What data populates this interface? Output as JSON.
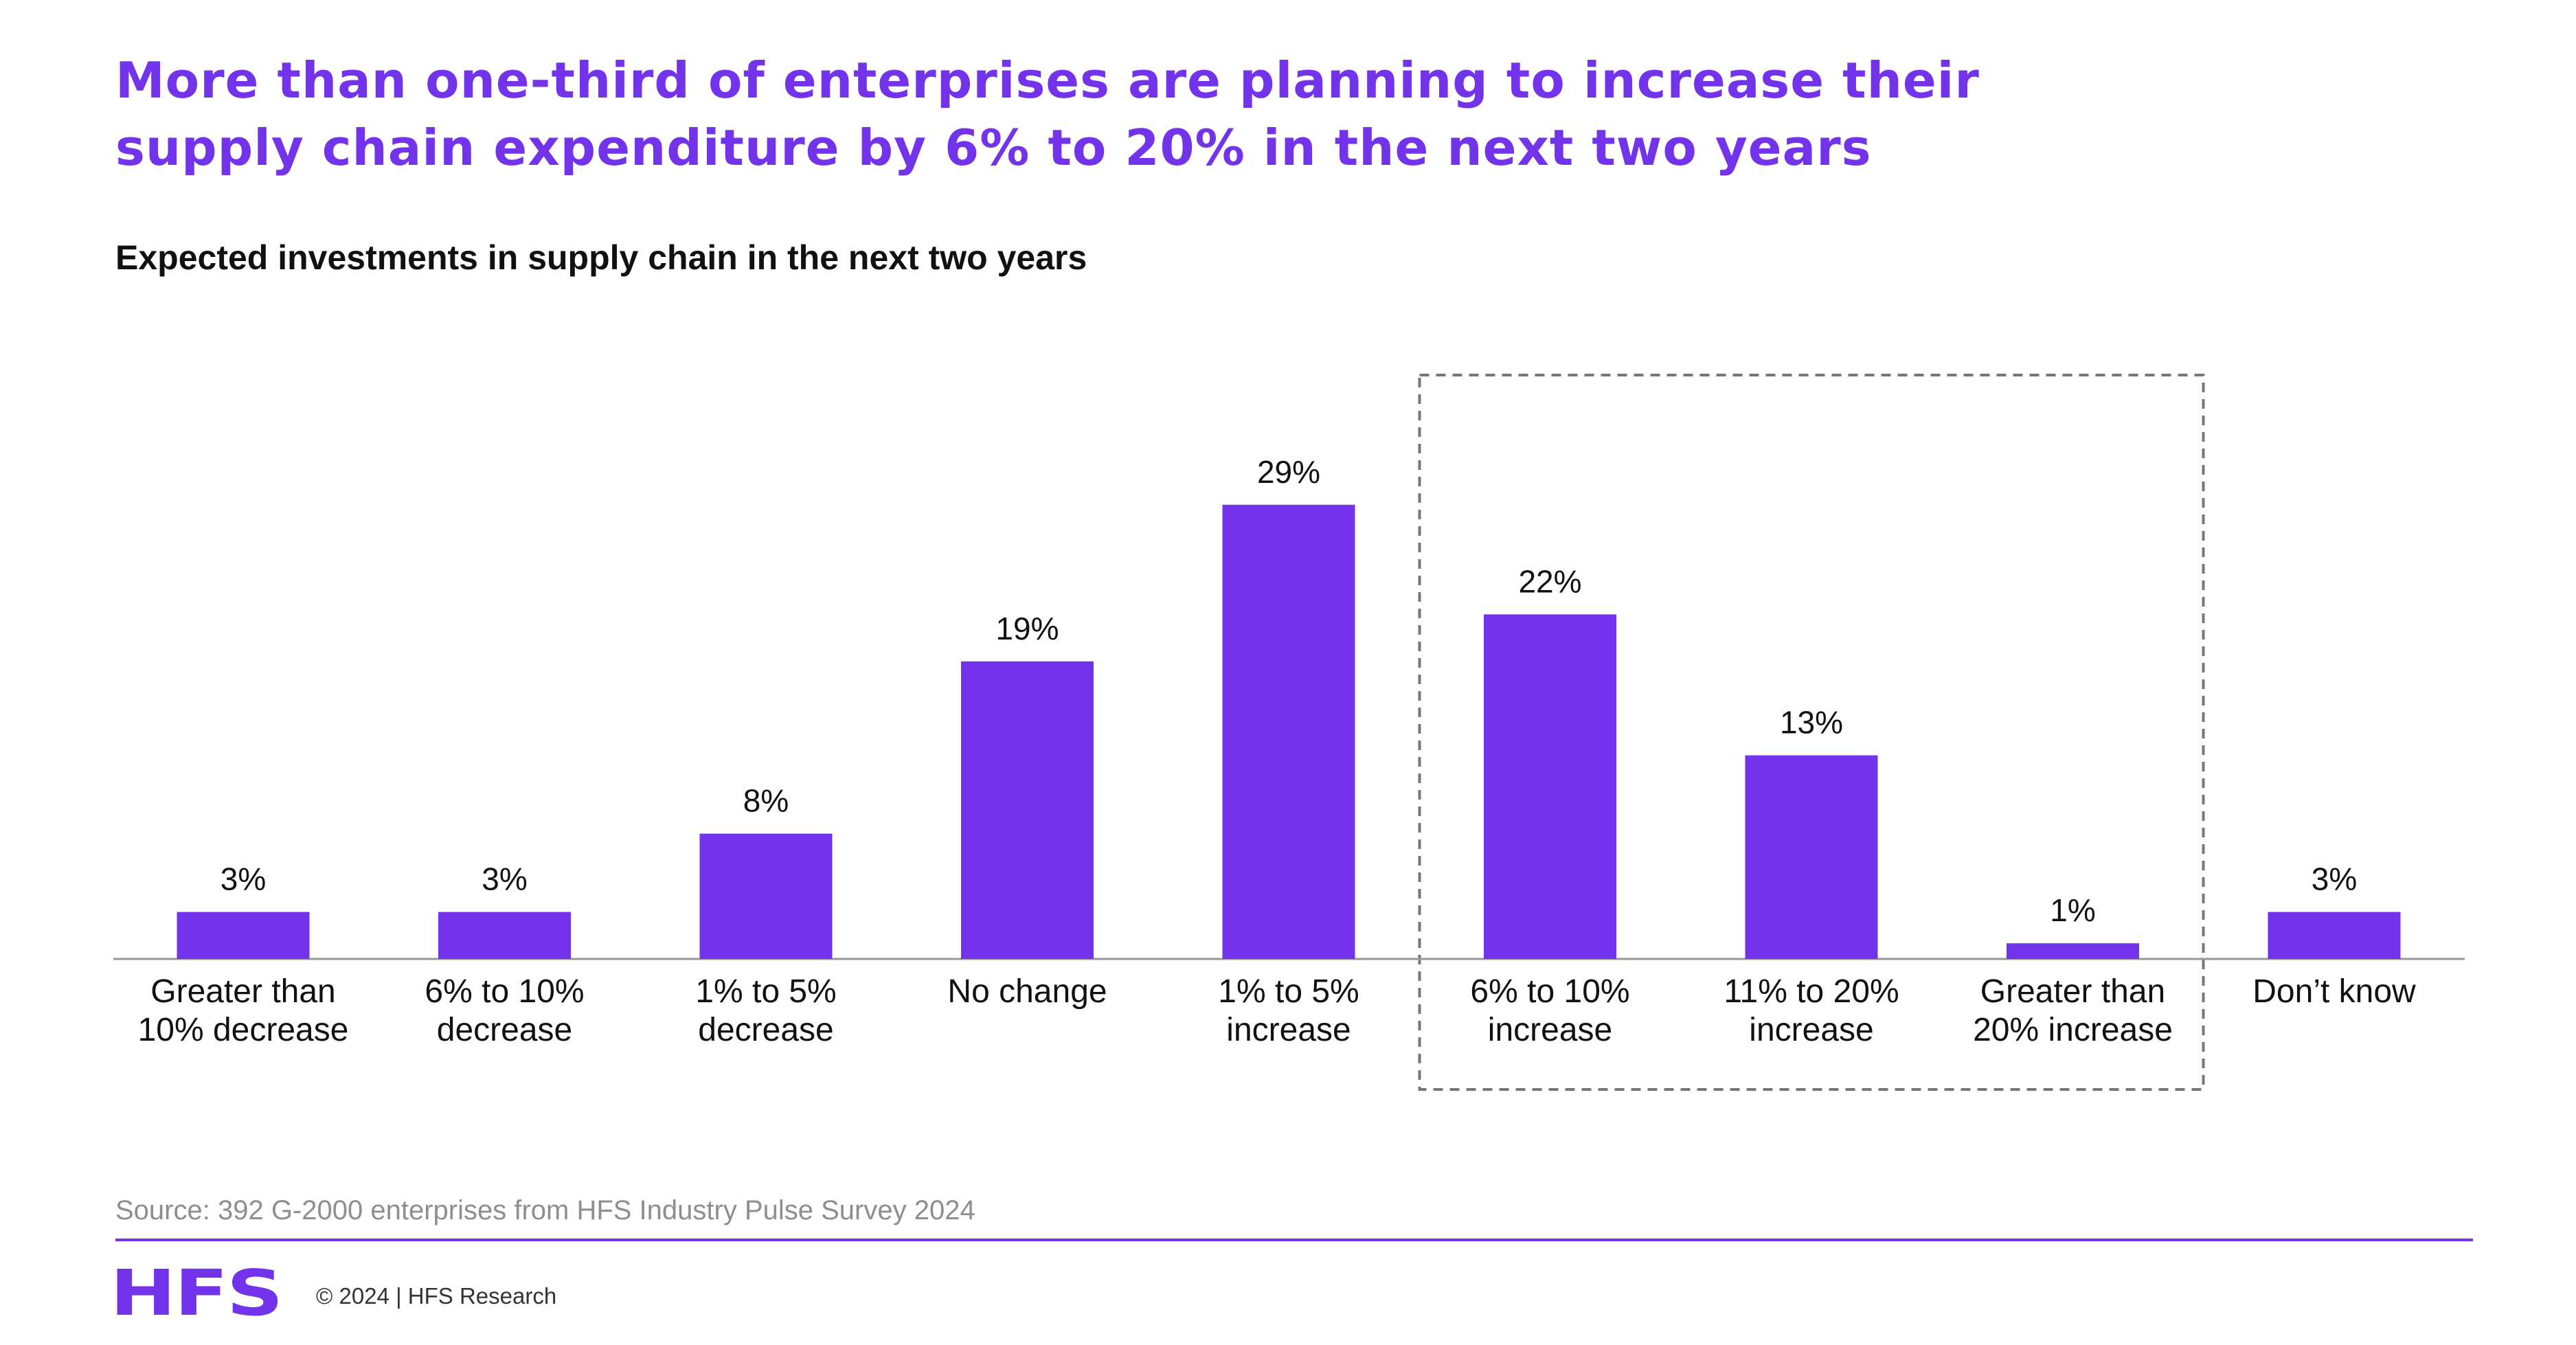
{
  "headline": {
    "line1": "More than one-third of enterprises are planning to increase their",
    "line2": "supply chain expenditure by 6% to 20% in the next two years"
  },
  "chart_data": {
    "type": "bar",
    "title": "Expected investments in supply chain in the next two years",
    "categories": [
      [
        "Greater than",
        "10% decrease"
      ],
      [
        "6% to 10%",
        "decrease"
      ],
      [
        "1% to 5%",
        "decrease"
      ],
      [
        "No change"
      ],
      [
        "1% to 5%",
        "increase"
      ],
      [
        "6% to 10%",
        "increase"
      ],
      [
        "11% to 20%",
        "increase"
      ],
      [
        "Greater than",
        "20% increase"
      ],
      [
        "Don’t know"
      ]
    ],
    "values": [
      3,
      3,
      8,
      19,
      29,
      22,
      13,
      1,
      3
    ],
    "value_labels": [
      "3%",
      "3%",
      "8%",
      "19%",
      "29%",
      "22%",
      "13%",
      "1%",
      "3%"
    ],
    "value_suffix": "%",
    "highlighted_categories": [
      5,
      6,
      7
    ],
    "bar_color": "#7333EA",
    "axis_color": "#999999",
    "highlight_box_color": "#777777",
    "grid": false,
    "legend": "none"
  },
  "footer": {
    "source": "Source: 392 G-2000 enterprises from HFS Industry Pulse Survey 2024",
    "logo": "HFS",
    "copyright": "© 2024 | HFS Research",
    "accent": "#7333EA"
  }
}
